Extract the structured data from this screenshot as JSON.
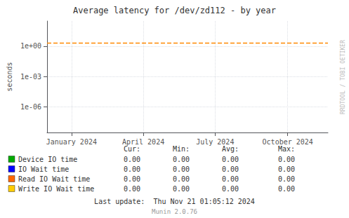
{
  "chart_data": {
    "type": "line",
    "title": "Average latency for /dev/zd112 - by year",
    "ylabel": "seconds",
    "log": "y",
    "grid": true,
    "legend": "bottom",
    "xlim": [
      1701388800,
      1732147512
    ],
    "xticks": [
      {
        "value": 1704067200,
        "label": "January 2024"
      },
      {
        "value": 1711929600,
        "label": "April 2024"
      },
      {
        "value": 1719792000,
        "label": "July 2024"
      },
      {
        "value": 1727740800,
        "label": "October 2024"
      }
    ],
    "ylim": [
      3e-09,
      300
    ],
    "yticks": [
      {
        "value": 1e-06,
        "label": "1e-06"
      },
      {
        "value": 0.001,
        "label": "1e-03"
      },
      {
        "value": 1,
        "label": "1e+00"
      }
    ],
    "reference_lines": [
      {
        "y": 2.0,
        "color": "#ff8800",
        "line_style": "dashed"
      }
    ],
    "table_headers": [
      "Cur:",
      "Min:",
      "Avg:",
      "Max:"
    ],
    "series": [
      {
        "name": "Device IO time",
        "color": "#00aa00",
        "table_values": [
          "0.00",
          "0.00",
          "0.00",
          "0.00"
        ]
      },
      {
        "name": "IO Wait time",
        "color": "#0000ff",
        "table_values": [
          "0.00",
          "0.00",
          "0.00",
          "0.00"
        ]
      },
      {
        "name": "Read IO Wait time",
        "color": "#ff6600",
        "table_values": [
          "0.00",
          "0.00",
          "0.00",
          "0.00"
        ]
      },
      {
        "name": "Write IO Wait time",
        "color": "#ffcc00",
        "table_values": [
          "0.00",
          "0.00",
          "0.00",
          "0.00"
        ]
      }
    ],
    "annotations": [
      "RRDTOOL / TOBI OETIKER",
      "Last update:  Thu Nov 21 01:05:12 2024",
      "Munin 2.0.76"
    ]
  }
}
